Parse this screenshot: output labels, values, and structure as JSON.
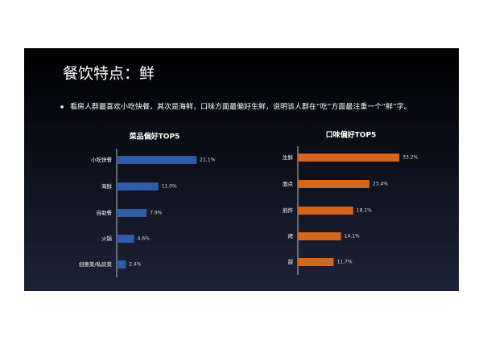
{
  "slide": {
    "title": "餐饮特点：鲜",
    "bullet": "看房人群最喜欢小吃快餐，其次是海鲜，口味方面最偏好生鲜，说明该人群在“吃”方面最注重一个“鲜”字。"
  },
  "chart_data": [
    {
      "type": "hbar",
      "title": "菜品偏好TOP5",
      "color": "#2f5ca8",
      "categories": [
        "小吃快餐",
        "海鲜",
        "自助餐",
        "火锅",
        "创意菜/私房菜"
      ],
      "values": [
        21.1,
        11.0,
        7.9,
        4.6,
        2.4
      ],
      "value_labels": [
        "21.1%",
        "11.0%",
        "7.9%",
        "4.6%",
        "2.4%"
      ]
    },
    {
      "type": "hbar",
      "title": "口味偏好TOP5",
      "color": "#d6661c",
      "categories": [
        "生鲜",
        "面点",
        "煎炸",
        "烤",
        "甜"
      ],
      "values": [
        33.2,
        23.4,
        18.1,
        14.1,
        11.7
      ],
      "value_labels": [
        "33.2%",
        "23.4%",
        "18.1%",
        "14.1%",
        "11.7%"
      ]
    }
  ]
}
